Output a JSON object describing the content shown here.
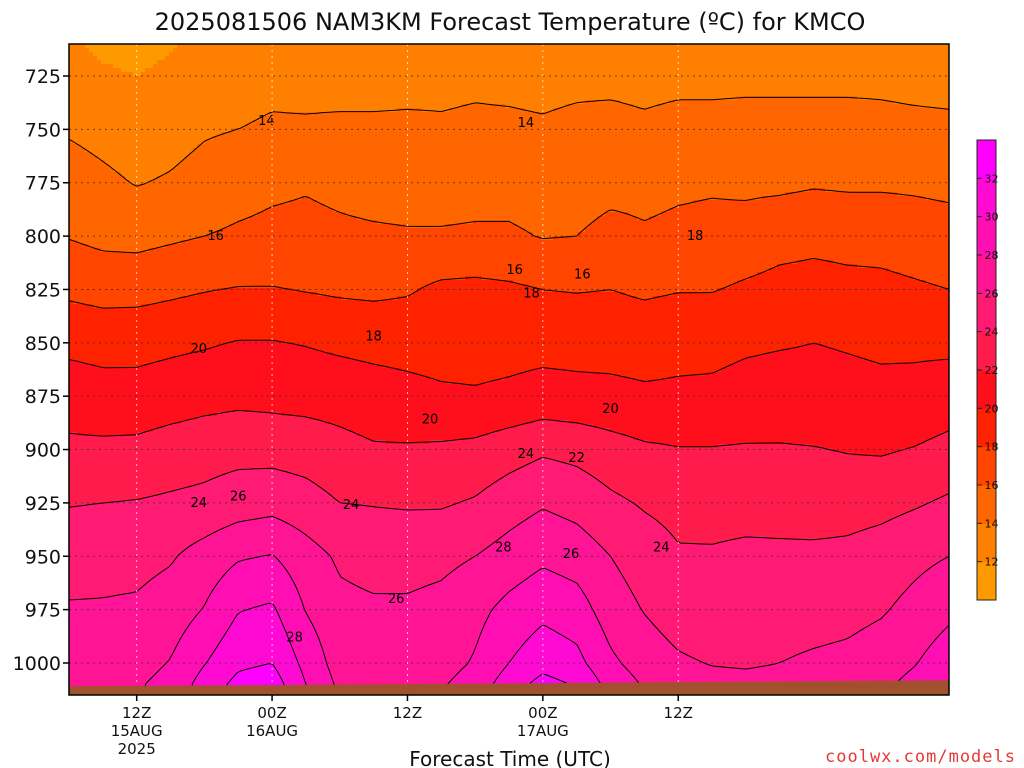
{
  "chart_data": {
    "type": "heatmap",
    "title": "2025081506 NAM3KM Forecast Temperature (ºC) for KMCO",
    "xlabel": "Forecast Time (UTC)",
    "ylabel": "",
    "credit": "coolwx.com/models",
    "y_axis": {
      "ticks": [
        725,
        750,
        775,
        800,
        825,
        850,
        875,
        900,
        925,
        950,
        975,
        1000
      ],
      "range": [
        710,
        1015
      ],
      "inverted": true,
      "unit": "hPa"
    },
    "x_axis": {
      "range_hours": [
        6,
        84
      ],
      "ticks": [
        {
          "hour": 12,
          "lines": [
            "12Z",
            "15AUG",
            "2025"
          ]
        },
        {
          "hour": 24,
          "lines": [
            "00Z",
            "16AUG"
          ]
        },
        {
          "hour": 36,
          "lines": [
            "12Z"
          ]
        },
        {
          "hour": 48,
          "lines": [
            "00Z",
            "17AUG"
          ]
        },
        {
          "hour": 60,
          "lines": [
            "12Z"
          ]
        }
      ]
    },
    "grid": true,
    "terrain_top_hpa": 1010,
    "legend": "right",
    "colorbar": {
      "levels": [
        10,
        12,
        14,
        16,
        18,
        20,
        22,
        24,
        26,
        28,
        30,
        32,
        34
      ],
      "labels": [
        12,
        14,
        16,
        18,
        20,
        22,
        24,
        26,
        28,
        30,
        32
      ],
      "colors": [
        "#ff9900",
        "#ff7f00",
        "#ff6600",
        "#ff4500",
        "#ff2200",
        "#ff0e1b",
        "#ff1c4c",
        "#ff1a74",
        "#ff1496",
        "#ff0fb3",
        "#ff0ad2",
        "#ff00ff"
      ]
    },
    "contour_levels": [
      14,
      16,
      18,
      20,
      22,
      24,
      26,
      28,
      30,
      32
    ],
    "contour_labels": [
      {
        "value": "14",
        "hour": 23.5,
        "hpa": 746
      },
      {
        "value": "14",
        "hour": 46.5,
        "hpa": 747
      },
      {
        "value": "16",
        "hour": 19,
        "hpa": 800
      },
      {
        "value": "16",
        "hour": 45.5,
        "hpa": 816
      },
      {
        "value": "16",
        "hour": 51.5,
        "hpa": 818
      },
      {
        "value": "18",
        "hour": 33,
        "hpa": 847
      },
      {
        "value": "18",
        "hour": 47,
        "hpa": 827
      },
      {
        "value": "18",
        "hour": 61.5,
        "hpa": 800
      },
      {
        "value": "20",
        "hour": 17.5,
        "hpa": 853
      },
      {
        "value": "20",
        "hour": 38,
        "hpa": 886
      },
      {
        "value": "20",
        "hour": 54,
        "hpa": 881
      },
      {
        "value": "22",
        "hour": 51,
        "hpa": 904
      },
      {
        "value": "24",
        "hour": 17.5,
        "hpa": 925
      },
      {
        "value": "24",
        "hour": 31,
        "hpa": 926
      },
      {
        "value": "24",
        "hour": 46.5,
        "hpa": 902
      },
      {
        "value": "24",
        "hour": 58.5,
        "hpa": 946
      },
      {
        "value": "26",
        "hour": 21,
        "hpa": 922
      },
      {
        "value": "26",
        "hour": 35,
        "hpa": 970
      },
      {
        "value": "26",
        "hour": 50.5,
        "hpa": 949
      },
      {
        "value": "28",
        "hour": 26,
        "hpa": 988
      },
      {
        "value": "28",
        "hour": 44.5,
        "hpa": 946
      }
    ],
    "grid_hours": [
      6,
      9,
      12,
      15,
      18,
      21,
      24,
      27,
      30,
      33,
      36,
      39,
      42,
      45,
      48,
      51,
      54,
      57,
      60,
      63,
      66,
      69,
      72,
      75,
      78,
      81,
      84
    ],
    "grid_hpa": [
      710,
      725,
      750,
      775,
      800,
      825,
      850,
      875,
      900,
      925,
      950,
      975,
      1000,
      1010
    ],
    "temperature_c": [
      [
        12.4,
        11.4,
        11.2,
        11.8,
        12.6,
        13.2,
        13.4,
        13.2,
        12.9,
        12.8,
        12.9,
        13.1,
        13.2,
        13.2,
        13.0,
        13.2,
        13.2,
        13.1,
        13.2,
        13.2,
        13.2,
        13.2,
        13.3,
        13.2,
        13.2,
        13.2,
        13.2
      ],
      [
        12.9,
        12.4,
        12.0,
        12.5,
        13.1,
        13.4,
        13.6,
        13.5,
        13.4,
        13.4,
        13.5,
        13.6,
        13.7,
        13.6,
        13.5,
        13.6,
        13.6,
        13.5,
        13.6,
        13.6,
        13.6,
        13.6,
        13.6,
        13.6,
        13.6,
        13.5,
        13.5
      ],
      [
        13.8,
        13.4,
        13.0,
        13.3,
        13.8,
        14.0,
        14.2,
        14.2,
        14.3,
        14.3,
        14.3,
        14.2,
        14.3,
        14.3,
        14.2,
        14.4,
        14.5,
        14.3,
        14.5,
        14.5,
        14.6,
        14.6,
        14.6,
        14.6,
        14.5,
        14.4,
        14.3
      ],
      [
        14.9,
        14.4,
        13.9,
        14.2,
        14.7,
        15.2,
        15.6,
        15.8,
        15.5,
        15.2,
        15.1,
        15.1,
        15.2,
        15.2,
        15.0,
        15.2,
        15.5,
        15.5,
        15.7,
        15.8,
        15.6,
        15.6,
        15.8,
        15.7,
        15.7,
        15.6,
        15.4
      ],
      [
        15.9,
        15.5,
        15.4,
        15.7,
        16.0,
        16.3,
        16.5,
        16.6,
        16.4,
        16.3,
        16.2,
        16.2,
        16.3,
        16.3,
        15.9,
        16.0,
        16.5,
        16.2,
        16.4,
        16.5,
        16.8,
        17.3,
        17.5,
        17.4,
        17.4,
        17.2,
        17.0
      ],
      [
        17.6,
        17.3,
        17.3,
        17.6,
        17.9,
        18.1,
        18.1,
        17.9,
        17.7,
        17.6,
        17.8,
        18.4,
        18.5,
        18.3,
        18.0,
        17.9,
        18.0,
        17.7,
        17.9,
        17.9,
        18.3,
        18.6,
        18.7,
        18.5,
        18.4,
        18.2,
        18.0
      ],
      [
        19.5,
        19.3,
        19.4,
        19.6,
        19.8,
        20.1,
        20.1,
        19.9,
        19.6,
        19.4,
        19.3,
        19.2,
        19.2,
        19.3,
        19.4,
        19.3,
        19.3,
        19.2,
        19.5,
        19.6,
        19.8,
        19.9,
        20.0,
        19.9,
        19.8,
        19.7,
        19.6
      ],
      [
        21.1,
        20.8,
        20.7,
        21.0,
        21.3,
        21.5,
        21.4,
        21.3,
        21.2,
        20.9,
        20.6,
        20.3,
        20.2,
        20.4,
        20.7,
        20.6,
        20.5,
        20.3,
        20.3,
        20.3,
        20.5,
        20.6,
        20.5,
        20.4,
        20.3,
        20.5,
        20.9
      ],
      [
        22.4,
        22.4,
        22.5,
        22.9,
        23.2,
        23.4,
        23.3,
        23.1,
        22.6,
        22.2,
        22.2,
        22.3,
        22.5,
        23.1,
        23.7,
        23.4,
        22.8,
        22.3,
        22.1,
        22.1,
        22.2,
        22.2,
        22.1,
        21.9,
        21.8,
        22.1,
        22.6
      ],
      [
        23.9,
        24.0,
        24.1,
        24.3,
        24.5,
        25.0,
        25.3,
        24.8,
        24.0,
        23.9,
        23.8,
        23.8,
        24.2,
        25.1,
        25.8,
        25.3,
        24.4,
        23.8,
        23.4,
        23.3,
        23.3,
        23.2,
        23.1,
        23.2,
        23.4,
        23.8,
        24.3
      ],
      [
        25.1,
        25.3,
        25.4,
        25.8,
        26.8,
        27.8,
        28.1,
        26.8,
        25.7,
        25.3,
        25.3,
        25.5,
        26.0,
        26.8,
        27.6,
        27.1,
        26.0,
        25.0,
        24.2,
        24.2,
        24.4,
        24.4,
        24.4,
        24.5,
        24.9,
        25.5,
        26.0
      ],
      [
        26.2,
        26.2,
        26.3,
        26.9,
        28.1,
        29.9,
        30.3,
        27.9,
        26.5,
        26.3,
        26.3,
        26.6,
        27.4,
        28.6,
        29.5,
        28.9,
        27.0,
        25.9,
        25.0,
        24.6,
        24.9,
        25.1,
        25.2,
        25.4,
        25.8,
        26.6,
        27.5
      ],
      [
        27.1,
        27.2,
        27.3,
        28.1,
        29.9,
        31.6,
        32.0,
        29.4,
        27.1,
        26.7,
        26.8,
        27.2,
        28.2,
        30.0,
        31.3,
        30.6,
        28.4,
        27.1,
        26.3,
        25.9,
        25.8,
        26.0,
        26.3,
        26.5,
        27.0,
        27.9,
        29.2
      ],
      [
        27.5,
        27.6,
        27.8,
        28.6,
        30.8,
        32.6,
        33.1,
        30.0,
        27.6,
        27.1,
        27.2,
        27.8,
        28.9,
        31.0,
        32.7,
        31.8,
        29.3,
        27.8,
        27.0,
        26.6,
        26.5,
        26.6,
        26.8,
        27.0,
        27.6,
        28.6,
        30.0
      ]
    ]
  }
}
